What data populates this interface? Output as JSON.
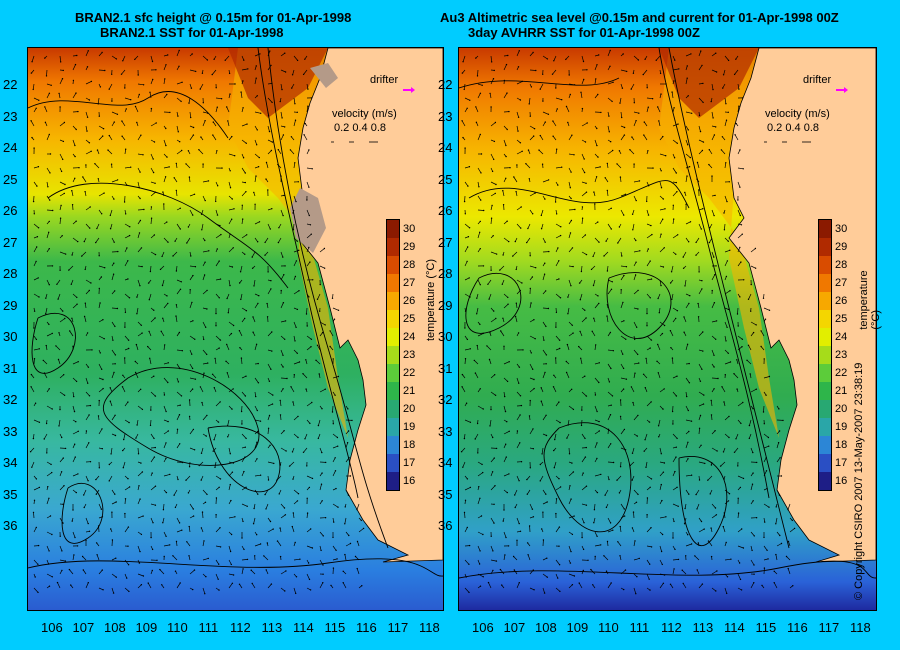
{
  "left_panel": {
    "title_line1": "BRAN2.1 sfc height @ 0.15m for 01-Apr-1998",
    "title_line2": "BRAN2.1 SST for 01-Apr-1998"
  },
  "right_panel": {
    "title_line1": "Au3 Altimetric sea level  @0.15m and current for 01-Apr-1998 00Z",
    "title_line2": "3day AVHRR SST for 01-Apr-1998 00Z"
  },
  "legend": {
    "drifter_label": "drifter",
    "velocity_label": "velocity (m/s)",
    "velocity_values": "0.2 0.4 0.8"
  },
  "colorbar": {
    "label": "temperature (°C)",
    "ticks": [
      "30",
      "29",
      "28",
      "27",
      "26",
      "25",
      "24",
      "23",
      "22",
      "21",
      "20",
      "19",
      "18",
      "17",
      "16"
    ],
    "colors": [
      "#8b1a00",
      "#b02a00",
      "#d94c00",
      "#f07800",
      "#f7a800",
      "#f4d600",
      "#e2ee00",
      "#a6dc1a",
      "#5ccc3a",
      "#2eb54a",
      "#28a872",
      "#2aa6a8",
      "#2c86d6",
      "#2a4fc4",
      "#1e1e86"
    ]
  },
  "axes": {
    "lat_ticks": [
      "22",
      "23",
      "24",
      "25",
      "26",
      "27",
      "28",
      "29",
      "30",
      "31",
      "32",
      "33",
      "34",
      "35",
      "36"
    ],
    "lon_ticks": [
      "106",
      "107",
      "108",
      "109",
      "110",
      "111",
      "112",
      "113",
      "114",
      "115",
      "116",
      "117",
      "118"
    ]
  },
  "copyright": "© Copyright CSIRO 2007  13-May-2007 23:38:19",
  "colors": {
    "background": "#00ccff",
    "land": "#ffcc99",
    "drifter": "#ff00ff"
  }
}
